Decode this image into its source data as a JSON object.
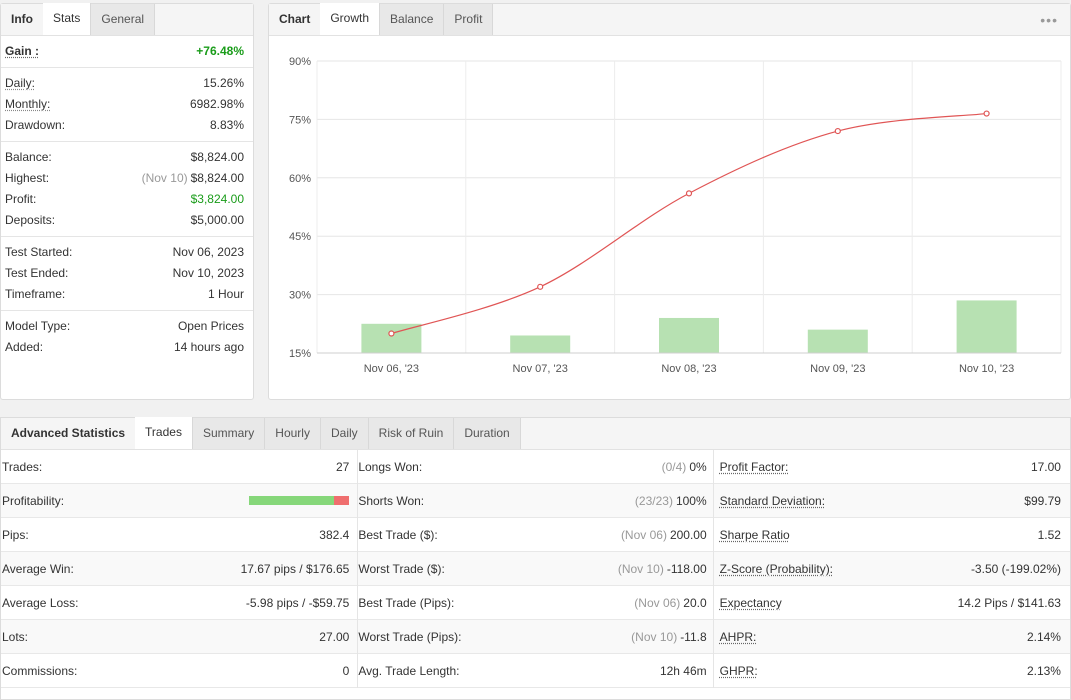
{
  "info_panel": {
    "tabs": [
      {
        "label": "Info"
      },
      {
        "label": "Stats"
      },
      {
        "label": "General"
      }
    ],
    "gain": {
      "label": "Gain :",
      "value": "+76.48%"
    },
    "groups": [
      [
        {
          "label": "Daily:",
          "value": "15.26%",
          "underline": true
        },
        {
          "label": "Monthly:",
          "value": "6982.98%",
          "underline": true
        },
        {
          "label": "Drawdown:",
          "value": "8.83%"
        }
      ],
      [
        {
          "label": "Balance:",
          "value": "$8,824.00"
        },
        {
          "label": "Highest:",
          "muted": "(Nov 10)",
          "value": "$8,824.00"
        },
        {
          "label": "Profit:",
          "value": "$3,824.00",
          "green": true
        },
        {
          "label": "Deposits:",
          "value": "$5,000.00"
        }
      ],
      [
        {
          "label": "Test Started:",
          "value": "Nov 06, 2023"
        },
        {
          "label": "Test Ended:",
          "value": "Nov 10, 2023"
        },
        {
          "label": "Timeframe:",
          "value": "1 Hour"
        }
      ],
      [
        {
          "label": "Model Type:",
          "value": "Open Prices"
        },
        {
          "label": "Added:",
          "value": "14 hours ago"
        }
      ]
    ]
  },
  "chart_panel": {
    "tabs": [
      {
        "label": "Chart"
      },
      {
        "label": "Growth"
      },
      {
        "label": "Balance"
      },
      {
        "label": "Profit"
      }
    ],
    "more_icon": "•••"
  },
  "chart_data": {
    "type": "line",
    "categories": [
      "Nov 06, '23",
      "Nov 07, '23",
      "Nov 08, '23",
      "Nov 09, '23",
      "Nov 10, '23"
    ],
    "yticks": [
      "90%",
      "75%",
      "60%",
      "45%",
      "30%",
      "15%"
    ],
    "ylim": [
      15,
      90
    ],
    "series": [
      {
        "type": "line",
        "values": [
          20,
          32,
          56,
          72,
          76.5
        ],
        "color": "#e05555"
      },
      {
        "type": "bar",
        "values": [
          22.5,
          19.5,
          24,
          21,
          28.5
        ],
        "color": "#b7e1b2"
      }
    ]
  },
  "adv_panel": {
    "tabs": [
      {
        "label": "Advanced Statistics"
      },
      {
        "label": "Trades"
      },
      {
        "label": "Summary"
      },
      {
        "label": "Hourly"
      },
      {
        "label": "Daily"
      },
      {
        "label": "Risk of Ruin"
      },
      {
        "label": "Duration"
      }
    ],
    "col1": [
      {
        "label": "Trades:",
        "value": "27"
      },
      {
        "label": "Profitability:",
        "win_fraction": 0.85
      },
      {
        "label": "Pips:",
        "value": "382.4"
      },
      {
        "label": "Average Win:",
        "value": "17.67 pips / $176.65"
      },
      {
        "label": "Average Loss:",
        "value": "-5.98 pips / -$59.75"
      },
      {
        "label": "Lots:",
        "value": "27.00"
      },
      {
        "label": "Commissions:",
        "value": "0"
      }
    ],
    "col2": [
      {
        "label": "Longs Won:",
        "muted": "(0/4)",
        "value": "0%"
      },
      {
        "label": "Shorts Won:",
        "muted": "(23/23)",
        "value": "100%"
      },
      {
        "label": "Best Trade ($):",
        "muted": "(Nov 06)",
        "value": "200.00"
      },
      {
        "label": "Worst Trade ($):",
        "muted": "(Nov 10)",
        "value": "-118.00"
      },
      {
        "label": "Best Trade (Pips):",
        "muted": "(Nov 06)",
        "value": "20.0"
      },
      {
        "label": "Worst Trade (Pips):",
        "muted": "(Nov 10)",
        "value": "-11.8"
      },
      {
        "label": "Avg. Trade Length:",
        "value": "12h 46m"
      }
    ],
    "col3": [
      {
        "label": "Profit Factor:",
        "value": "17.00"
      },
      {
        "label": "Standard Deviation:",
        "value": "$99.79"
      },
      {
        "label": "Sharpe Ratio",
        "value": "1.52"
      },
      {
        "label": "Z-Score (Probability):",
        "value": "-3.50 (-199.02%)"
      },
      {
        "label": "Expectancy",
        "value": "14.2 Pips / $141.63"
      },
      {
        "label": "AHPR:",
        "value": "2.14%"
      },
      {
        "label": "GHPR:",
        "value": "2.13%"
      }
    ]
  }
}
